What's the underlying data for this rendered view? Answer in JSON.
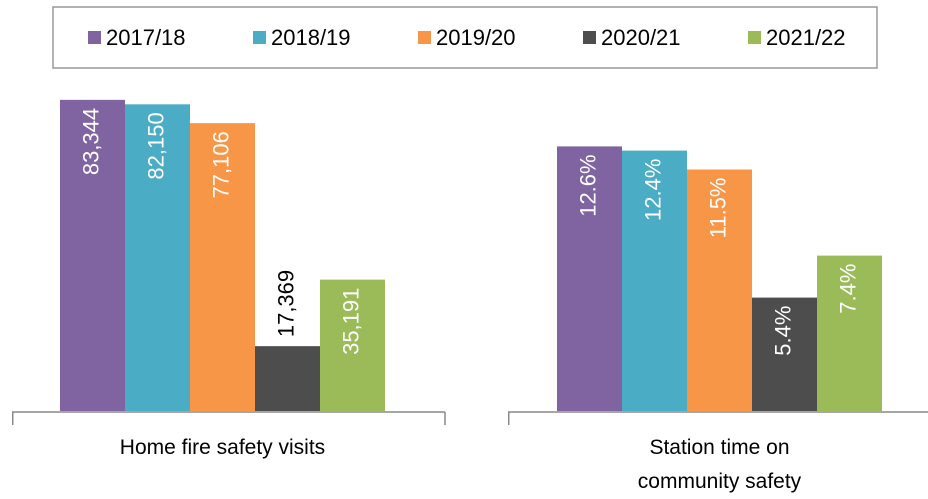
{
  "chart_data": [
    {
      "type": "bar",
      "categories": [
        "Home fire safety visits"
      ],
      "ylim": [
        0,
        90000
      ],
      "series": [
        {
          "name": "2017/18",
          "color": "#8064a2",
          "values": [
            83344
          ],
          "value_labels": [
            "83,344"
          ]
        },
        {
          "name": "2018/19",
          "color": "#4bacc6",
          "values": [
            82150
          ],
          "value_labels": [
            "82,150"
          ]
        },
        {
          "name": "2019/20",
          "color": "#f79646",
          "values": [
            77106
          ],
          "value_labels": [
            "77,106"
          ]
        },
        {
          "name": "2020/21",
          "color": "#4d4d4d",
          "values": [
            17369
          ],
          "value_labels": [
            "17,369"
          ]
        },
        {
          "name": "2021/22",
          "color": "#9bbb59",
          "values": [
            35191
          ],
          "value_labels": [
            "35,191"
          ]
        }
      ]
    },
    {
      "type": "bar",
      "categories": [
        "Station time on community safety"
      ],
      "ylim": [
        0,
        16
      ],
      "series": [
        {
          "color": "#8064a2",
          "values": [
            12.6
          ],
          "value_labels": [
            "12.6%"
          ]
        },
        {
          "color": "#4bacc6",
          "values": [
            12.4
          ],
          "value_labels": [
            "12.4%"
          ]
        },
        {
          "color": "#f79646",
          "values": [
            11.5
          ],
          "value_labels": [
            "11.5%"
          ]
        },
        {
          "color": "#4d4d4d",
          "values": [
            5.4
          ],
          "value_labels": [
            "5.4%"
          ]
        },
        {
          "color": "#9bbb59",
          "values": [
            7.4
          ],
          "value_labels": [
            "7.4%"
          ]
        }
      ]
    }
  ]
}
